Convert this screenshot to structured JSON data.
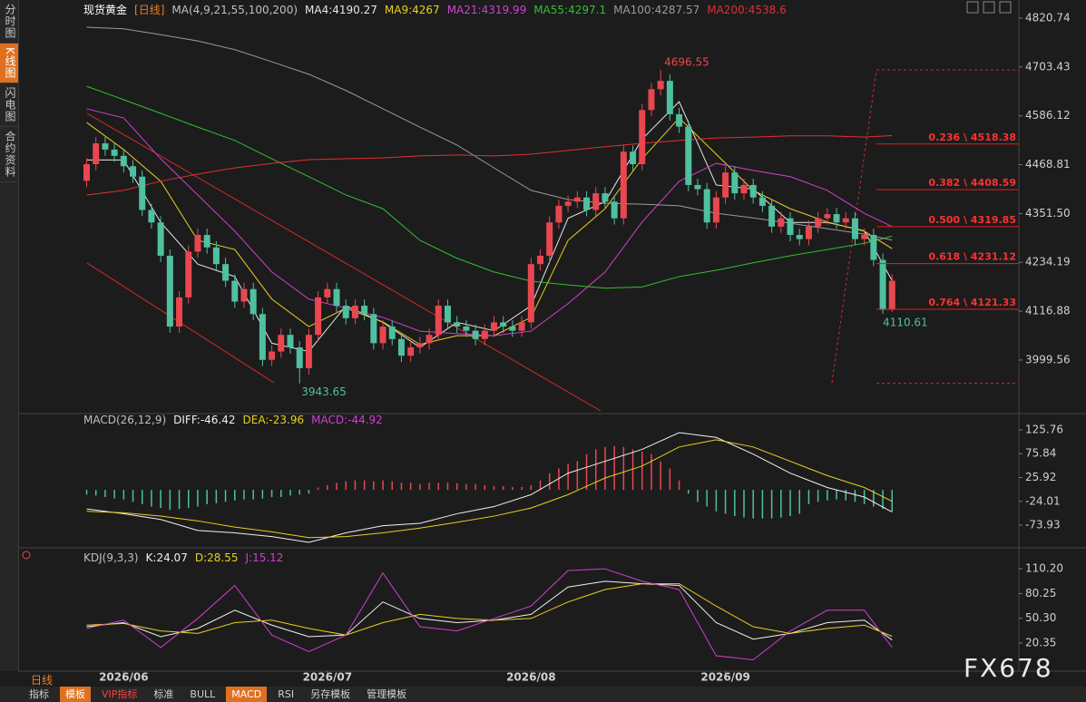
{
  "sidebar_tabs": [
    "分时图",
    "K线图",
    "闪电图",
    "合约资料"
  ],
  "period": "日线",
  "toolbar": [
    "指标",
    "模板",
    "VIP指标",
    "标准",
    "BULL",
    "MACD",
    "RSI",
    "另存模板",
    "管理模板"
  ],
  "watermark": "FX678",
  "chart_data": [
    {
      "type": "candlestick",
      "title": "现货黄金",
      "subtitle": "[日线]",
      "indicator": "MA(4,9,21,55,100,200)",
      "up_color": "#e8474f",
      "down_color": "#4fc0a0",
      "xlim": [
        -7.4,
        100.4
      ],
      "ylim": [
        3873.1,
        4842.5
      ],
      "yticks": [
        4820.74,
        4703.43,
        4586.12,
        4468.81,
        {
          "value": 4351.5,
          "label": "4351.50"
        },
        4234.19,
        4116.88,
        3999.56
      ],
      "open": [
        4430,
        4470,
        4520,
        4505,
        4490,
        4465,
        4440,
        4360,
        4330,
        4250,
        4080,
        4150,
        4260,
        4300,
        4270,
        4230,
        4190,
        4140,
        4170,
        4110,
        4000,
        4020,
        4060,
        4030,
        3980,
        4060,
        4150,
        4170,
        4130,
        4100,
        4130,
        4110,
        4040,
        4080,
        4050,
        4010,
        4030,
        4040,
        4060,
        4130,
        4090,
        4080,
        4070,
        4050,
        4070,
        4090,
        4080,
        4070,
        4090,
        4230,
        4250,
        4330,
        4370,
        4380,
        4390,
        4360,
        4400,
        4380,
        4340,
        4500,
        4470,
        4600,
        4650,
        4670,
        4590,
        4560,
        4420,
        4410,
        4330,
        4390,
        4450,
        4400,
        4420,
        4390,
        4370,
        4320,
        4340,
        4300,
        4290,
        4320,
        4340,
        4350,
        4330,
        4340,
        4290,
        4300,
        4240,
        4120
      ],
      "high": [
        4485,
        4535,
        4535,
        4520,
        4505,
        4480,
        4455,
        4375,
        4345,
        4265,
        4165,
        4275,
        4315,
        4315,
        4285,
        4245,
        4205,
        4185,
        4185,
        4125,
        4035,
        4075,
        4075,
        4045,
        4075,
        4165,
        4185,
        4185,
        4145,
        4145,
        4145,
        4125,
        4095,
        4095,
        4065,
        4045,
        4055,
        4075,
        4145,
        4145,
        4105,
        4095,
        4085,
        4085,
        4105,
        4105,
        4095,
        4105,
        4245,
        4265,
        4345,
        4385,
        4395,
        4405,
        4405,
        4415,
        4415,
        4395,
        4515,
        4515,
        4615,
        4665,
        4696.55,
        4685,
        4605,
        4575,
        4435,
        4425,
        4405,
        4465,
        4465,
        4435,
        4435,
        4405,
        4385,
        4355,
        4355,
        4315,
        4335,
        4355,
        4365,
        4365,
        4355,
        4355,
        4315,
        4315,
        4255,
        4205
      ],
      "low": [
        4415,
        4455,
        4490,
        4475,
        4450,
        4425,
        4345,
        4315,
        4235,
        4065,
        4065,
        4135,
        4245,
        4255,
        4215,
        4175,
        4125,
        4125,
        4095,
        3985,
        3985,
        4005,
        4015,
        3943.65,
        3965,
        4045,
        4135,
        4115,
        4085,
        4085,
        4095,
        4025,
        4025,
        4035,
        3995,
        3995,
        4015,
        4025,
        4045,
        4075,
        4065,
        4055,
        4035,
        4035,
        4055,
        4065,
        4055,
        4055,
        4075,
        4215,
        4235,
        4315,
        4355,
        4365,
        4345,
        4345,
        4365,
        4325,
        4325,
        4455,
        4455,
        4585,
        4635,
        4575,
        4545,
        4405,
        4395,
        4315,
        4315,
        4375,
        4385,
        4385,
        4375,
        4355,
        4305,
        4305,
        4285,
        4275,
        4275,
        4305,
        4325,
        4315,
        4315,
        4275,
        4275,
        4225,
        4110.61,
        4115
      ],
      "close": [
        4470,
        4520,
        4505,
        4490,
        4465,
        4440,
        4360,
        4330,
        4250,
        4080,
        4150,
        4260,
        4300,
        4270,
        4230,
        4190,
        4140,
        4170,
        4110,
        4000,
        4020,
        4060,
        4030,
        3980,
        4060,
        4150,
        4170,
        4130,
        4100,
        4130,
        4110,
        4040,
        4080,
        4050,
        4010,
        4030,
        4040,
        4060,
        4130,
        4090,
        4080,
        4070,
        4050,
        4070,
        4090,
        4080,
        4070,
        4090,
        4230,
        4250,
        4330,
        4370,
        4380,
        4390,
        4360,
        4400,
        4380,
        4340,
        4500,
        4470,
        4600,
        4650,
        4670,
        4590,
        4560,
        4420,
        4410,
        4330,
        4390,
        4450,
        4400,
        4420,
        4390,
        4370,
        4320,
        4340,
        4300,
        4290,
        4320,
        4340,
        4350,
        4330,
        4340,
        4290,
        4300,
        4240,
        4120,
        4190
      ],
      "ma_x": [
        0,
        4,
        8,
        12,
        16,
        20,
        24,
        28,
        32,
        36,
        40,
        44,
        48,
        52,
        56,
        60,
        64,
        68,
        72,
        76,
        80,
        84,
        87
      ],
      "series": [
        {
          "name": "MA4",
          "color": "#e6e6e6",
          "values": [
            4480,
            4480,
            4330,
            4230,
            4200,
            4040,
            4020,
            4130,
            4090,
            4030,
            4090,
            4070,
            4130,
            4340,
            4380,
            4530,
            4620,
            4420,
            4410,
            4330,
            4330,
            4310,
            4190.27
          ]
        },
        {
          "name": "MA9",
          "color": "#e8d020",
          "values": [
            4570,
            4505,
            4429,
            4287,
            4265,
            4146,
            4080,
            4124,
            4091,
            4037,
            4058,
            4058,
            4102,
            4287,
            4363,
            4483,
            4581,
            4494,
            4407,
            4363,
            4331,
            4309,
            4267.0
          ]
        },
        {
          "name": "MA21",
          "color": "#d040d0",
          "values": [
            4603,
            4581,
            4483,
            4396,
            4309,
            4211,
            4146,
            4124,
            4102,
            4069,
            4063,
            4058,
            4069,
            4135,
            4211,
            4331,
            4429,
            4472,
            4455,
            4440,
            4407,
            4352,
            4319.99
          ]
        },
        {
          "name": "MA55",
          "color": "#30c030",
          "values": [
            4657,
            4625,
            4592,
            4559,
            4527,
            4483,
            4440,
            4396,
            4363,
            4287,
            4244,
            4211,
            4189,
            4180,
            4172,
            4175,
            4200,
            4215,
            4233,
            4250,
            4265,
            4280,
            4297.1
          ]
        },
        {
          "name": "MA100",
          "color": "#9a9a9a",
          "values": [
            4799,
            4795,
            4781,
            4766,
            4745,
            4716,
            4686,
            4647,
            4603,
            4559,
            4516,
            4461,
            4407,
            4385,
            4376,
            4374,
            4370,
            4352,
            4341,
            4328,
            4315,
            4302,
            4287.57
          ]
        },
        {
          "name": "MA200",
          "color": "#e03030",
          "values": [
            4396,
            4407,
            4429,
            4446,
            4461,
            4472,
            4481,
            4483,
            4485,
            4490,
            4492,
            4490,
            4494,
            4503,
            4512,
            4520,
            4527,
            4533,
            4535,
            4538,
            4538,
            4535,
            4538.6
          ]
        }
      ],
      "fib_levels": [
        {
          "value": 4518.38,
          "label": "0.236 \\ 4518.38"
        },
        {
          "value": 4408.59,
          "label": "0.382 \\ 4408.59"
        },
        {
          "value": 4319.85,
          "label": "0.500 \\ 4319.85"
        },
        {
          "value": 4231.12,
          "label": "0.618 \\ 4231.12"
        },
        {
          "value": 4121.33,
          "label": "0.764 \\ 4121.33"
        }
      ]
    },
    {
      "type": "macd",
      "title": "MACD(26,12,9)",
      "xlim": [
        -7.4,
        100.4
      ],
      "ylim": [
        -113.83,
        148.56
      ],
      "yticks": [
        125.76,
        75.84,
        25.92,
        -24.01,
        -73.93
      ],
      "ma_x": [
        0,
        4,
        8,
        12,
        16,
        20,
        24,
        28,
        32,
        36,
        40,
        44,
        48,
        52,
        56,
        60,
        64,
        68,
        72,
        76,
        80,
        84,
        87
      ],
      "series": [
        {
          "name": "DIFF",
          "color": "#f0f0f0",
          "values": [
            -40,
            -50,
            -62,
            -85,
            -90,
            -98,
            -110,
            -90,
            -75,
            -70,
            -50,
            -35,
            -10,
            35,
            60,
            85,
            120,
            110,
            75,
            35,
            5,
            -15,
            -46.42
          ]
        },
        {
          "name": "DEA",
          "color": "#e8d020",
          "values": [
            -45,
            -48,
            -55,
            -65,
            -78,
            -88,
            -100,
            -98,
            -90,
            -80,
            -68,
            -55,
            -38,
            -10,
            25,
            50,
            90,
            105,
            90,
            60,
            30,
            5,
            -23.96
          ]
        }
      ],
      "histogram": {
        "name": "MACD",
        "color": "#d040d0",
        "up_color": "#e8474f",
        "down_color": "#4fc0a0",
        "values": [
          -10,
          -12,
          -15,
          -18,
          -20,
          -25,
          -30,
          -35,
          -38,
          -42,
          -40,
          -38,
          -35,
          -30,
          -28,
          -25,
          -22,
          -20,
          -20,
          -18,
          -15,
          -15,
          -12,
          -10,
          -8,
          5,
          10,
          15,
          18,
          20,
          20,
          18,
          20,
          18,
          15,
          15,
          12,
          15,
          15,
          15,
          14,
          12,
          12,
          10,
          8,
          8,
          6,
          6,
          10,
          20,
          35,
          45,
          55,
          60,
          75,
          85,
          90,
          92,
          90,
          85,
          80,
          75,
          60,
          45,
          20,
          -8,
          -25,
          -35,
          -45,
          -50,
          -55,
          -58,
          -60,
          -60,
          -60,
          -58,
          -55,
          -50,
          -30,
          -25,
          -22,
          -20,
          -22,
          -25,
          -30,
          -35,
          -40,
          -44.92
        ]
      }
    },
    {
      "type": "kdj",
      "title": "KDJ(9,3,3)",
      "xlim": [
        -7.4,
        100.4
      ],
      "ylim": [
        -13.66,
        126.66
      ],
      "yticks": [
        {
          "value": 110.2,
          "label": "110.20"
        },
        80.25,
        {
          "value": 50.3,
          "label": "50.30"
        },
        20.35
      ],
      "xticks": [
        {
          "value": 4,
          "label": "2026/06"
        },
        {
          "value": 26,
          "label": "2026/07"
        },
        {
          "value": 48,
          "label": "2026/08"
        },
        {
          "value": 69,
          "label": "2026/09"
        }
      ],
      "ma_x": [
        0,
        4,
        8,
        12,
        16,
        20,
        24,
        28,
        32,
        36,
        40,
        44,
        48,
        52,
        56,
        60,
        64,
        68,
        72,
        76,
        80,
        84,
        87
      ],
      "series": [
        {
          "name": "K",
          "color": "#f0f0f0",
          "values": [
            40,
            45,
            28,
            38,
            60,
            42,
            28,
            30,
            70,
            50,
            45,
            48,
            55,
            88,
            95,
            92,
            90,
            45,
            25,
            32,
            45,
            48,
            24.07
          ]
        },
        {
          "name": "D",
          "color": "#e8d020",
          "values": [
            42,
            44,
            35,
            32,
            45,
            48,
            38,
            30,
            45,
            55,
            50,
            48,
            50,
            70,
            85,
            92,
            92,
            65,
            40,
            32,
            38,
            42,
            28.55
          ]
        },
        {
          "name": "J",
          "color": "#d040d0",
          "values": [
            38,
            48,
            15,
            50,
            90,
            30,
            10,
            30,
            105,
            40,
            35,
            50,
            65,
            108,
            110,
            95,
            85,
            5,
            0,
            35,
            60,
            60,
            15.12
          ]
        }
      ]
    }
  ]
}
